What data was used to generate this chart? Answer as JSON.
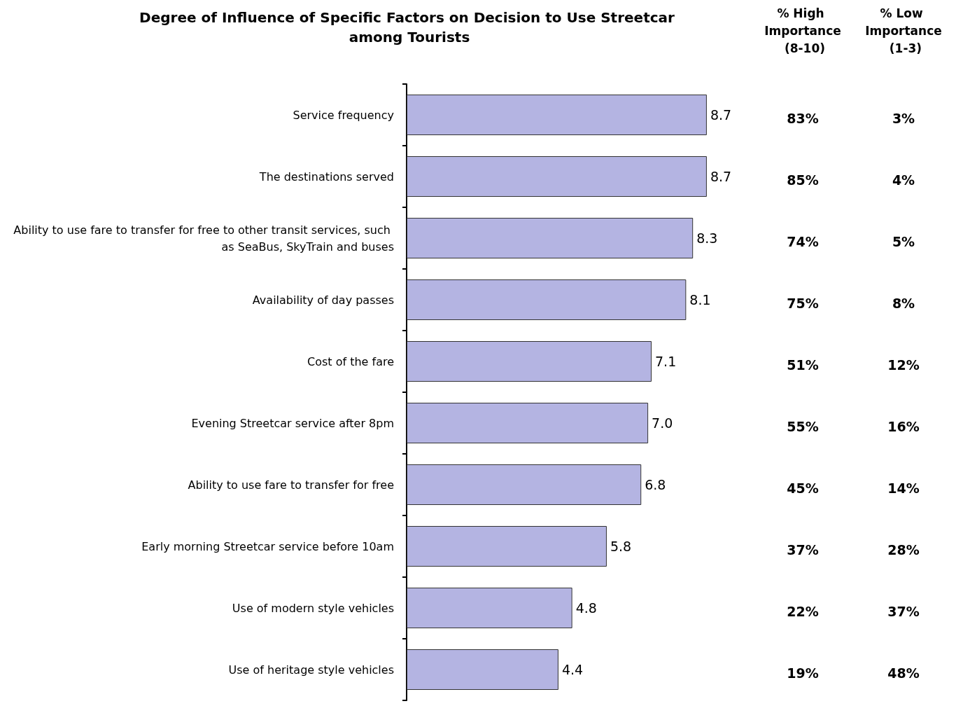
{
  "chart_data": {
    "type": "bar",
    "orientation": "horizontal",
    "title": "Degree of Influence of Specific Factors on Decision to Use Streetcar among Tourists",
    "categories": [
      "Service frequency",
      "The destinations served",
      "Ability to use fare to transfer for free to other transit services, such as SeaBus, SkyTrain and buses",
      "Availability of day passes",
      "Cost of the fare",
      "Evening Streetcar service after 8pm",
      "Ability to use fare to transfer for free",
      "Early morning Streetcar service before 10am",
      "Use of modern style vehicles",
      "Use of heritage style vehicles"
    ],
    "values": [
      8.7,
      8.7,
      8.3,
      8.1,
      7.1,
      7.0,
      6.8,
      5.8,
      4.8,
      4.4
    ],
    "value_labels": [
      "8.7",
      "8.7",
      "8.3",
      "8.1",
      "7.1",
      "7.0",
      "6.8",
      "5.8",
      "4.8",
      "4.4"
    ],
    "color": "#b4b4e2",
    "tick_labels": "y",
    "annotations": [
      "% High Importance (8-10)",
      "% Low Importance (1-3)",
      "83%",
      "3%",
      "85%",
      "4%",
      "74%",
      "5%",
      "75%",
      "8%",
      "51%",
      "12%",
      "55%",
      "16%",
      "45%",
      "14%",
      "37%",
      "28%",
      "22%",
      "37%",
      "19%",
      "48%"
    ]
  }
}
